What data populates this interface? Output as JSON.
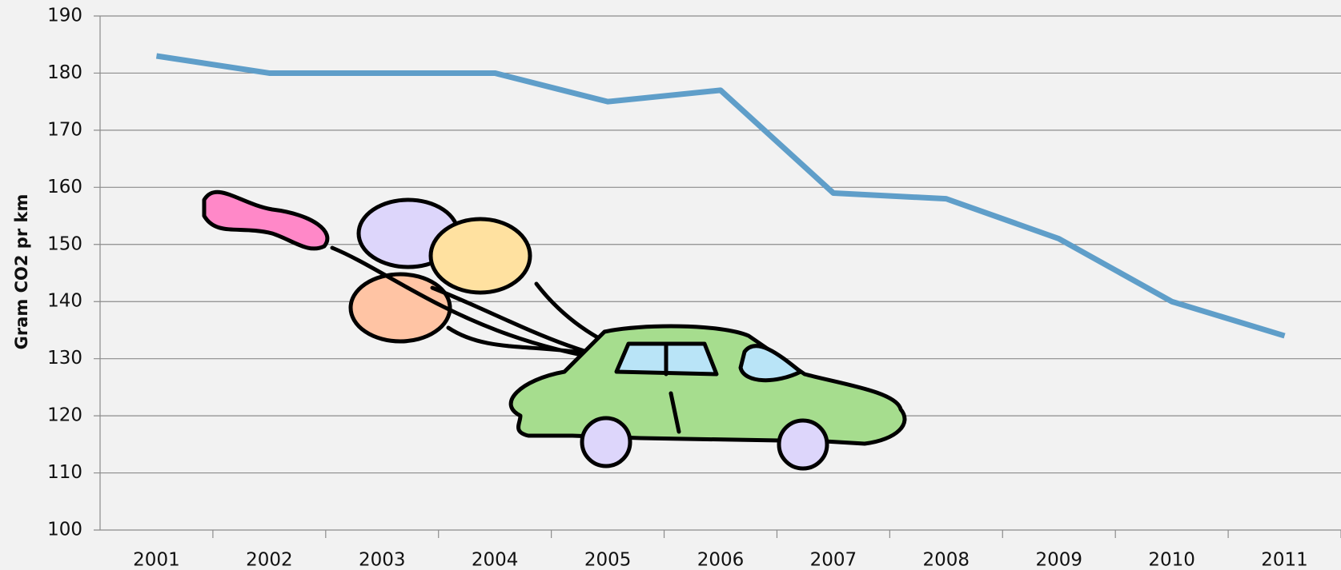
{
  "chart_data": {
    "type": "line",
    "y_label": "Gram CO2 pr km",
    "categories": [
      "2001",
      "2002",
      "2003",
      "2004",
      "2005",
      "2006",
      "2007",
      "2008",
      "2009",
      "2010",
      "2011"
    ],
    "series": [
      {
        "color": "#5f9ec9",
        "values": [
          183,
          180,
          180,
          180,
          175,
          177,
          159,
          158,
          151,
          140,
          134
        ]
      }
    ],
    "ylim": [
      100,
      190
    ],
    "yticks": [
      100,
      110,
      120,
      130,
      140,
      150,
      160,
      170,
      180,
      190
    ],
    "grid": true
  }
}
